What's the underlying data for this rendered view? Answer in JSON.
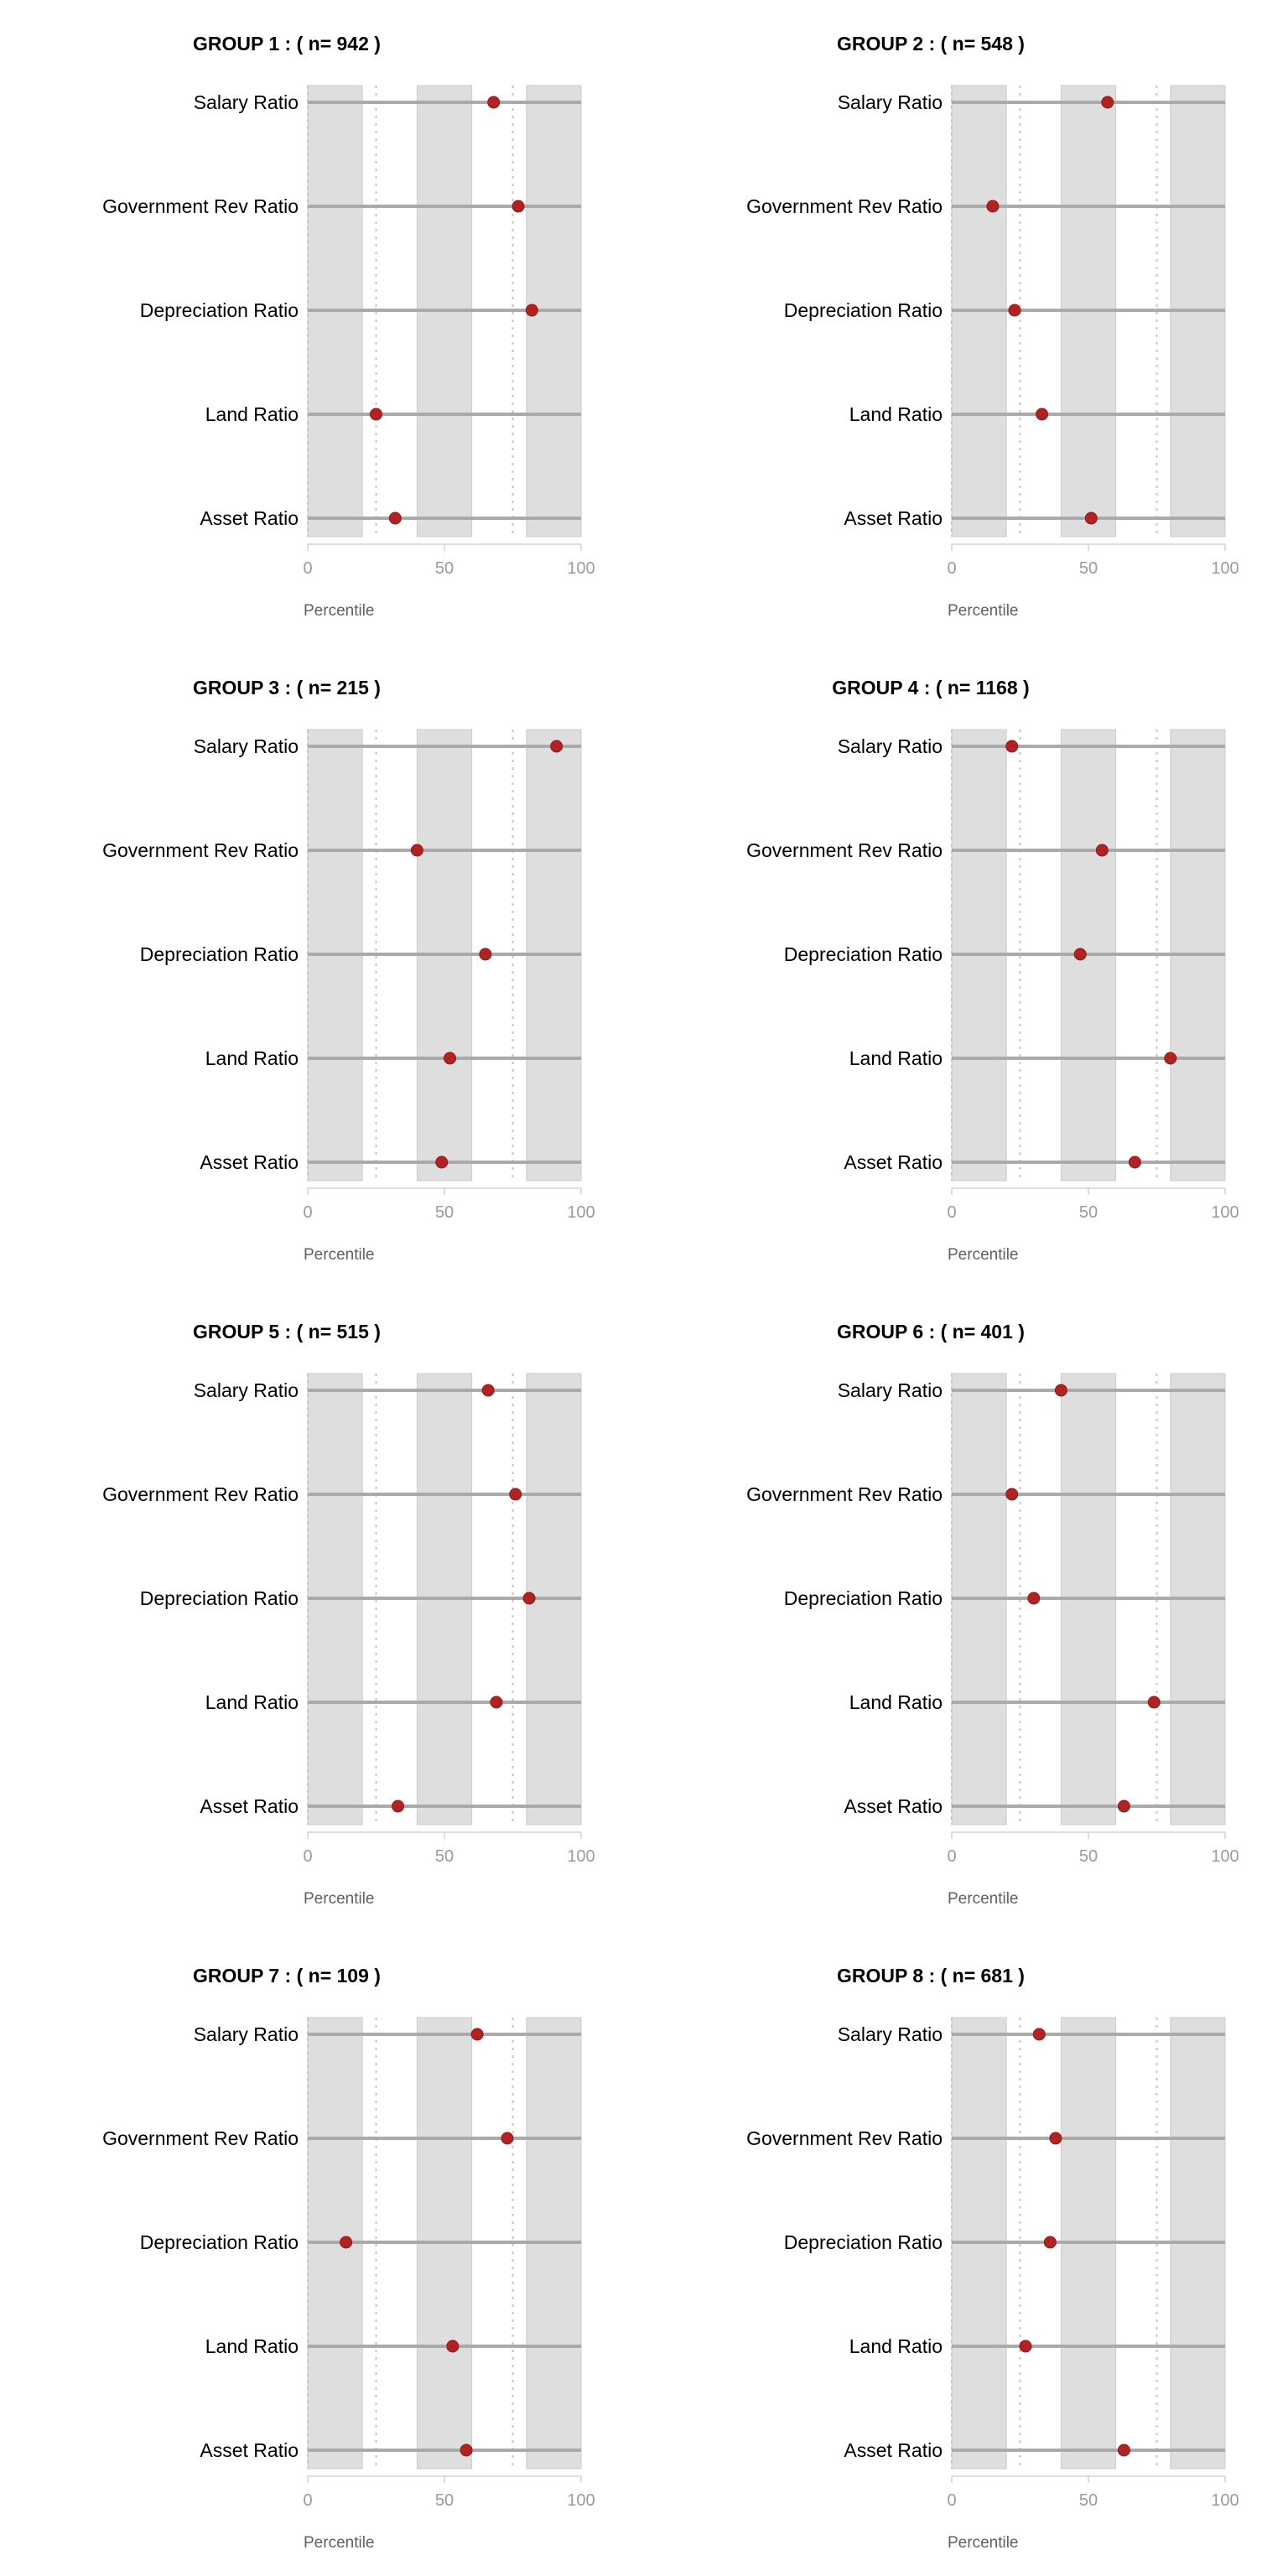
{
  "chart_data": [
    {
      "type": "scatter",
      "title": "GROUP 1 : ( n= 942 )",
      "categories": [
        "Salary Ratio",
        "Government Rev Ratio",
        "Depreciation Ratio",
        "Land Ratio",
        "Asset Ratio"
      ],
      "values": [
        68,
        77,
        82,
        25,
        32
      ],
      "xlabel": "Percentile",
      "xlim": [
        0,
        100
      ],
      "xticks": [
        0,
        50,
        100
      ],
      "shaded_bands": [
        [
          0,
          20
        ],
        [
          40,
          60
        ],
        [
          80,
          100
        ]
      ],
      "dotted_lines": [
        25,
        75
      ],
      "point_color": "#b22222"
    },
    {
      "type": "scatter",
      "title": "GROUP 2 : ( n= 548 )",
      "categories": [
        "Salary Ratio",
        "Government Rev Ratio",
        "Depreciation Ratio",
        "Land Ratio",
        "Asset Ratio"
      ],
      "values": [
        57,
        15,
        23,
        33,
        51
      ],
      "xlabel": "Percentile",
      "xlim": [
        0,
        100
      ],
      "xticks": [
        0,
        50,
        100
      ],
      "shaded_bands": [
        [
          0,
          20
        ],
        [
          40,
          60
        ],
        [
          80,
          100
        ]
      ],
      "dotted_lines": [
        25,
        75
      ],
      "point_color": "#b22222"
    },
    {
      "type": "scatter",
      "title": "GROUP 3 : ( n= 215 )",
      "categories": [
        "Salary Ratio",
        "Government Rev Ratio",
        "Depreciation Ratio",
        "Land Ratio",
        "Asset Ratio"
      ],
      "values": [
        91,
        40,
        65,
        52,
        49
      ],
      "xlabel": "Percentile",
      "xlim": [
        0,
        100
      ],
      "xticks": [
        0,
        50,
        100
      ],
      "shaded_bands": [
        [
          0,
          20
        ],
        [
          40,
          60
        ],
        [
          80,
          100
        ]
      ],
      "dotted_lines": [
        25,
        75
      ],
      "point_color": "#b22222"
    },
    {
      "type": "scatter",
      "title": "GROUP 4 : ( n= 1168 )",
      "categories": [
        "Salary Ratio",
        "Government Rev Ratio",
        "Depreciation Ratio",
        "Land Ratio",
        "Asset Ratio"
      ],
      "values": [
        22,
        55,
        47,
        80,
        67
      ],
      "xlabel": "Percentile",
      "xlim": [
        0,
        100
      ],
      "xticks": [
        0,
        50,
        100
      ],
      "shaded_bands": [
        [
          0,
          20
        ],
        [
          40,
          60
        ],
        [
          80,
          100
        ]
      ],
      "dotted_lines": [
        25,
        75
      ],
      "point_color": "#b22222"
    },
    {
      "type": "scatter",
      "title": "GROUP 5 : ( n= 515 )",
      "categories": [
        "Salary Ratio",
        "Government Rev Ratio",
        "Depreciation Ratio",
        "Land Ratio",
        "Asset Ratio"
      ],
      "values": [
        66,
        76,
        81,
        69,
        33
      ],
      "xlabel": "Percentile",
      "xlim": [
        0,
        100
      ],
      "xticks": [
        0,
        50,
        100
      ],
      "shaded_bands": [
        [
          0,
          20
        ],
        [
          40,
          60
        ],
        [
          80,
          100
        ]
      ],
      "dotted_lines": [
        25,
        75
      ],
      "point_color": "#b22222"
    },
    {
      "type": "scatter",
      "title": "GROUP 6 : ( n= 401 )",
      "categories": [
        "Salary Ratio",
        "Government Rev Ratio",
        "Depreciation Ratio",
        "Land Ratio",
        "Asset Ratio"
      ],
      "values": [
        40,
        22,
        30,
        74,
        63
      ],
      "xlabel": "Percentile",
      "xlim": [
        0,
        100
      ],
      "xticks": [
        0,
        50,
        100
      ],
      "shaded_bands": [
        [
          0,
          20
        ],
        [
          40,
          60
        ],
        [
          80,
          100
        ]
      ],
      "dotted_lines": [
        25,
        75
      ],
      "point_color": "#b22222"
    },
    {
      "type": "scatter",
      "title": "GROUP 7 : ( n= 109 )",
      "categories": [
        "Salary Ratio",
        "Government Rev Ratio",
        "Depreciation Ratio",
        "Land Ratio",
        "Asset Ratio"
      ],
      "values": [
        62,
        73,
        14,
        53,
        58
      ],
      "xlabel": "Percentile",
      "xlim": [
        0,
        100
      ],
      "xticks": [
        0,
        50,
        100
      ],
      "shaded_bands": [
        [
          0,
          20
        ],
        [
          40,
          60
        ],
        [
          80,
          100
        ]
      ],
      "dotted_lines": [
        25,
        75
      ],
      "point_color": "#b22222"
    },
    {
      "type": "scatter",
      "title": "GROUP 8 : ( n= 681 )",
      "categories": [
        "Salary Ratio",
        "Government Rev Ratio",
        "Depreciation Ratio",
        "Land Ratio",
        "Asset Ratio"
      ],
      "values": [
        32,
        38,
        36,
        27,
        63
      ],
      "xlabel": "Percentile",
      "xlim": [
        0,
        100
      ],
      "xticks": [
        0,
        50,
        100
      ],
      "shaded_bands": [
        [
          0,
          20
        ],
        [
          40,
          60
        ],
        [
          80,
          100
        ]
      ],
      "dotted_lines": [
        25,
        75
      ],
      "point_color": "#b22222"
    }
  ]
}
